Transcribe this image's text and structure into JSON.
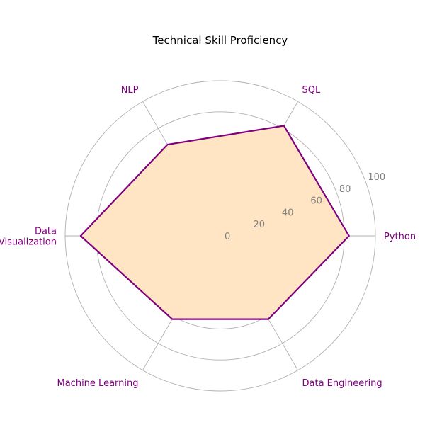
{
  "chart_data": {
    "type": "radar",
    "title": "Technical Skill Proficiency",
    "categories": [
      "Python",
      "SQL",
      "NLP",
      "Data\nVisualization",
      "Machine Learning",
      "Data Engineering"
    ],
    "series": [
      {
        "values": [
          83,
          82,
          68,
          90,
          62,
          62
        ]
      }
    ],
    "rlim": [
      0,
      100
    ],
    "rticks": [
      0,
      20,
      40,
      60,
      80,
      100
    ],
    "grid": true,
    "colors": {
      "line": "#800080",
      "fill": "#FFE5C4",
      "label": "#800080",
      "tick": "#808080",
      "grid": "#b0b0b0"
    }
  }
}
